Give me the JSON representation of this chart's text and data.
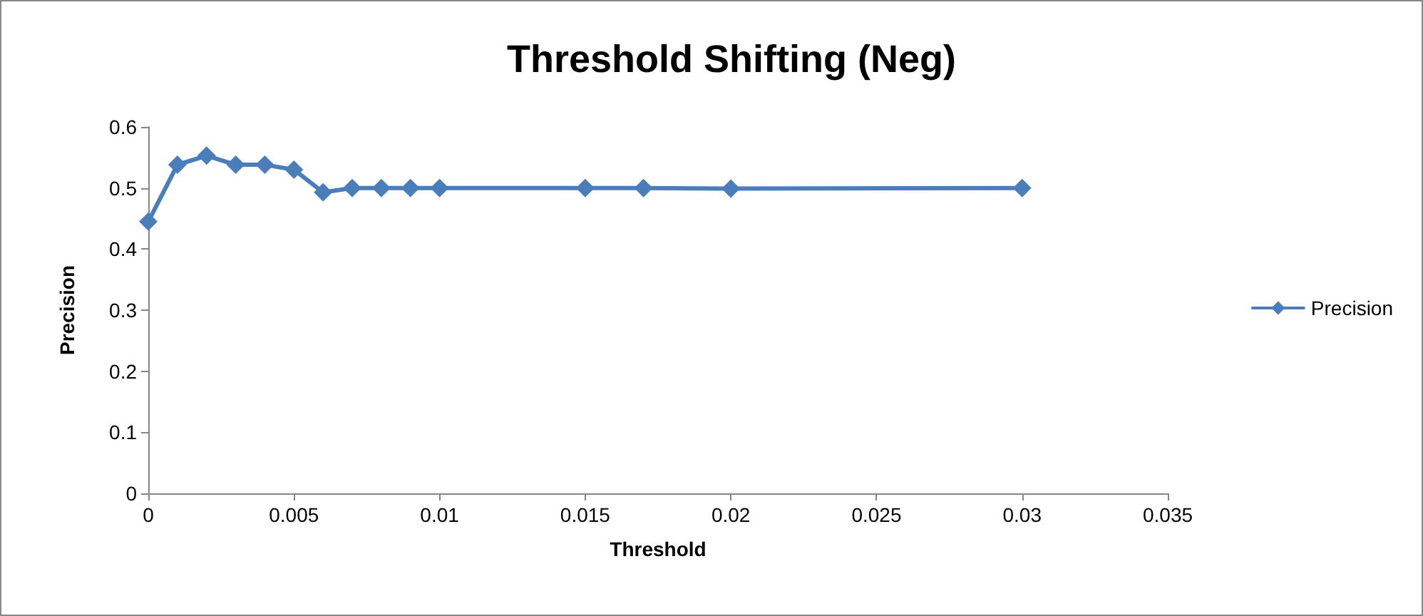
{
  "chart_data": {
    "type": "line",
    "title": "Threshold Shifting (Neg)",
    "xlabel": "Threshold",
    "ylabel": "Precision",
    "x": [
      0,
      0.001,
      0.002,
      0.003,
      0.004,
      0.005,
      0.006,
      0.007,
      0.008,
      0.009,
      0.01,
      0.015,
      0.017,
      0.02,
      0.03
    ],
    "series": [
      {
        "name": "Precision",
        "color": "#4a7ebb",
        "values": [
          0.445,
          0.538,
          0.553,
          0.538,
          0.538,
          0.53,
          0.493,
          0.5,
          0.5,
          0.5,
          0.5,
          0.5,
          0.5,
          0.499,
          0.5
        ]
      }
    ],
    "xlim": [
      0,
      0.035
    ],
    "xticks": [
      0,
      0.005,
      0.01,
      0.015,
      0.02,
      0.025,
      0.03,
      0.035
    ],
    "ylim": [
      0,
      0.6
    ],
    "yticks": [
      0,
      0.1,
      0.2,
      0.3,
      0.4,
      0.5,
      0.6
    ],
    "marker": "diamond",
    "legend": "right",
    "grid": false
  }
}
